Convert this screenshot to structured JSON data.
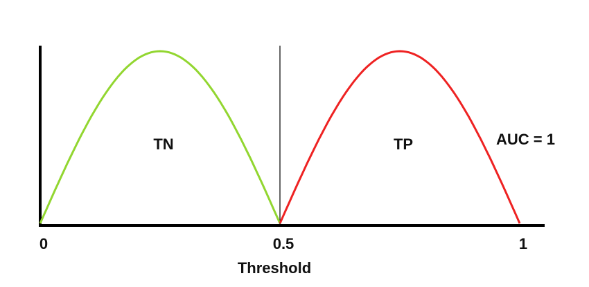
{
  "chart_data": {
    "type": "line",
    "title": "",
    "xlabel": "Threshold",
    "ylabel": "",
    "x_ticks": [
      {
        "value": 0,
        "label": "0"
      },
      {
        "value": 0.5,
        "label": "0.5"
      },
      {
        "value": 1,
        "label": "1"
      }
    ],
    "xlim": [
      0,
      1
    ],
    "ylim": [
      0,
      1
    ],
    "threshold": 0.5,
    "series": [
      {
        "label": "TN",
        "color": "#92d630",
        "x_start": 0,
        "x_end": 0.5,
        "peak": 1
      },
      {
        "label": "TP",
        "color": "#ee2222",
        "x_start": 0.5,
        "x_end": 1,
        "peak": 1
      }
    ],
    "annotation": "AUC = 1",
    "grid": false
  }
}
